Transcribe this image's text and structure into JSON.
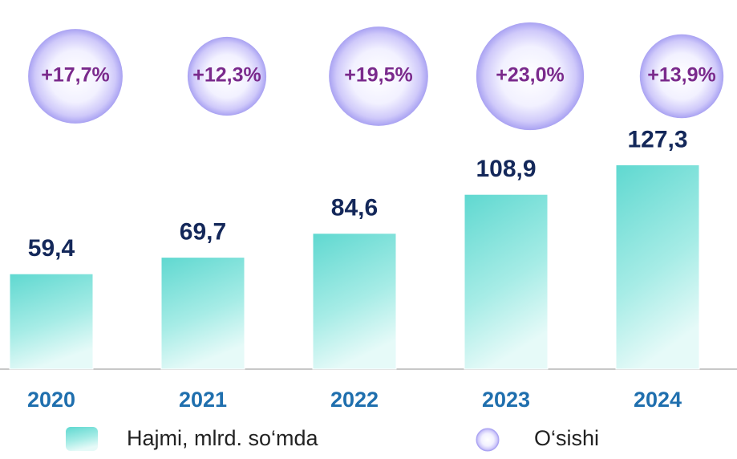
{
  "chart_data": {
    "type": "bar",
    "categories": [
      "2020",
      "2021",
      "2022",
      "2023",
      "2024"
    ],
    "series": [
      {
        "name": "Hajmi, mlrd. so‘mda",
        "color": "#5fd8d0",
        "values": [
          59.4,
          69.7,
          84.6,
          108.9,
          127.3
        ],
        "value_labels": [
          "59,4",
          "69,7",
          "84,6",
          "108,9",
          "127,3"
        ]
      },
      {
        "name": "O‘sishi",
        "color": "#a9a2f2",
        "values": [
          17.7,
          12.3,
          19.5,
          23.0,
          13.9
        ],
        "value_labels": [
          "+17,7%",
          "+12,3%",
          "+19,5%",
          "+23,0%",
          "+13,9%"
        ]
      }
    ],
    "ylim": [
      0,
      135
    ]
  }
}
